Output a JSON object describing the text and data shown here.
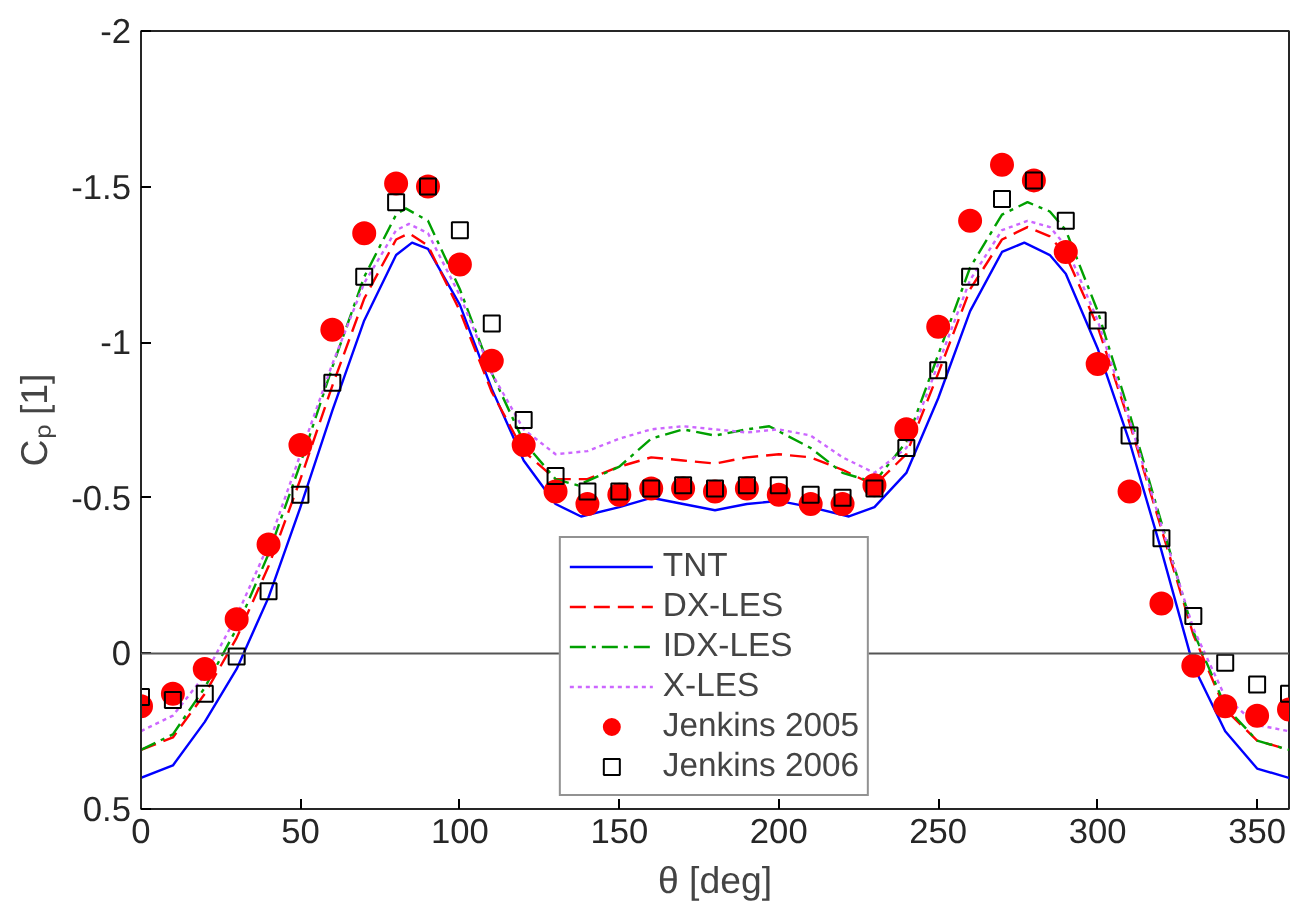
{
  "chart_data": {
    "type": "line",
    "xlabel": "θ [deg]",
    "ylabel": "Cₚ [1]",
    "xlim": [
      0,
      360
    ],
    "xticks": [
      0,
      50,
      100,
      150,
      200,
      250,
      300,
      350
    ],
    "ylim": [
      0.5,
      -2
    ],
    "yticks": [
      0.5,
      0,
      -0.5,
      -1,
      -1.5,
      -2
    ],
    "grid": false,
    "legend": "bottom",
    "ref_lines": [
      {
        "axis": "y",
        "value": 0,
        "color": "#555555"
      }
    ],
    "series": [
      {
        "name": "TNT",
        "color": "#0000ff",
        "line_style": "solid",
        "x": [
          0,
          10,
          20,
          30,
          40,
          50,
          60,
          70,
          80,
          85,
          90,
          100,
          110,
          120,
          130,
          138,
          150,
          160,
          170,
          180,
          190,
          200,
          210,
          222,
          230,
          240,
          250,
          260,
          270,
          277,
          285,
          290,
          300,
          310,
          320,
          330,
          340,
          350,
          360
        ],
        "values": [
          0.4,
          0.36,
          0.22,
          0.05,
          -0.18,
          -0.47,
          -0.78,
          -1.07,
          -1.28,
          -1.32,
          -1.3,
          -1.12,
          -0.85,
          -0.62,
          -0.48,
          -0.44,
          -0.47,
          -0.5,
          -0.48,
          -0.46,
          -0.48,
          -0.49,
          -0.47,
          -0.44,
          -0.47,
          -0.58,
          -0.82,
          -1.1,
          -1.29,
          -1.32,
          -1.28,
          -1.22,
          -0.98,
          -0.68,
          -0.33,
          0.04,
          0.25,
          0.37,
          0.4
        ]
      },
      {
        "name": "DX-LES",
        "color": "#ff0000",
        "line_style": "dashed",
        "x": [
          0,
          10,
          20,
          30,
          40,
          50,
          60,
          70,
          80,
          84,
          90,
          100,
          110,
          120,
          130,
          140,
          150,
          160,
          170,
          180,
          190,
          200,
          210,
          220,
          230,
          240,
          250,
          260,
          270,
          278,
          285,
          290,
          300,
          310,
          320,
          330,
          340,
          350,
          360
        ],
        "values": [
          0.31,
          0.27,
          0.13,
          -0.05,
          -0.28,
          -0.56,
          -0.86,
          -1.14,
          -1.33,
          -1.35,
          -1.31,
          -1.1,
          -0.84,
          -0.65,
          -0.56,
          -0.56,
          -0.6,
          -0.63,
          -0.62,
          -0.61,
          -0.63,
          -0.64,
          -0.63,
          -0.59,
          -0.54,
          -0.64,
          -0.9,
          -1.17,
          -1.33,
          -1.37,
          -1.34,
          -1.28,
          -1.05,
          -0.74,
          -0.4,
          -0.06,
          0.18,
          0.28,
          0.31
        ]
      },
      {
        "name": "IDX-LES",
        "color": "#00a000",
        "line_style": "dashdot",
        "x": [
          0,
          10,
          20,
          30,
          40,
          50,
          60,
          70,
          80,
          83,
          90,
          100,
          110,
          120,
          130,
          137,
          150,
          160,
          170,
          180,
          190,
          197,
          210,
          220,
          230,
          240,
          250,
          260,
          270,
          278,
          285,
          290,
          300,
          310,
          320,
          330,
          340,
          350,
          360
        ],
        "values": [
          0.31,
          0.26,
          0.11,
          -0.08,
          -0.32,
          -0.61,
          -0.92,
          -1.21,
          -1.41,
          -1.43,
          -1.39,
          -1.17,
          -0.9,
          -0.68,
          -0.56,
          -0.54,
          -0.6,
          -0.69,
          -0.72,
          -0.7,
          -0.72,
          -0.73,
          -0.66,
          -0.58,
          -0.55,
          -0.68,
          -0.96,
          -1.24,
          -1.41,
          -1.45,
          -1.42,
          -1.36,
          -1.1,
          -0.77,
          -0.42,
          -0.07,
          0.17,
          0.28,
          0.31
        ]
      },
      {
        "name": "X-LES",
        "color": "#cc66ff",
        "line_style": "dotted",
        "x": [
          0,
          10,
          20,
          30,
          40,
          50,
          60,
          70,
          80,
          84,
          90,
          100,
          110,
          120,
          130,
          140,
          150,
          160,
          170,
          180,
          190,
          200,
          210,
          220,
          230,
          240,
          250,
          260,
          270,
          278,
          285,
          290,
          300,
          310,
          320,
          330,
          340,
          350,
          360
        ],
        "values": [
          0.25,
          0.2,
          0.07,
          -0.12,
          -0.35,
          -0.64,
          -0.93,
          -1.19,
          -1.36,
          -1.38,
          -1.35,
          -1.15,
          -0.9,
          -0.72,
          -0.64,
          -0.65,
          -0.69,
          -0.72,
          -0.73,
          -0.72,
          -0.71,
          -0.72,
          -0.7,
          -0.63,
          -0.58,
          -0.66,
          -0.93,
          -1.2,
          -1.36,
          -1.39,
          -1.37,
          -1.31,
          -1.07,
          -0.75,
          -0.41,
          -0.08,
          0.14,
          0.23,
          0.25
        ]
      },
      {
        "name": "Jenkins 2005",
        "type": "scatter",
        "color": "#ff0000",
        "marker": "circle",
        "x": [
          0,
          10,
          20,
          30,
          40,
          50,
          60,
          70,
          80,
          90,
          100,
          110,
          120,
          130,
          140,
          150,
          160,
          170,
          180,
          190,
          200,
          210,
          220,
          230,
          240,
          250,
          260,
          270,
          280,
          290,
          300,
          310,
          320,
          330,
          340,
          350,
          360
        ],
        "values": [
          0.17,
          0.13,
          0.05,
          -0.11,
          -0.35,
          -0.67,
          -1.04,
          -1.35,
          -1.51,
          -1.5,
          -1.25,
          -0.94,
          -0.67,
          -0.52,
          -0.48,
          -0.51,
          -0.53,
          -0.53,
          -0.52,
          -0.53,
          -0.51,
          -0.48,
          -0.48,
          -0.54,
          -0.72,
          -1.05,
          -1.39,
          -1.57,
          -1.52,
          -1.29,
          -0.93,
          -0.52,
          -0.16,
          0.04,
          0.17,
          0.2,
          0.18
        ]
      },
      {
        "name": "Jenkins 2006",
        "type": "scatter",
        "color": "#000000",
        "marker": "square",
        "x": [
          0,
          10,
          20,
          30,
          40,
          50,
          60,
          70,
          80,
          90,
          100,
          110,
          120,
          130,
          140,
          150,
          160,
          170,
          180,
          190,
          200,
          210,
          220,
          230,
          240,
          250,
          260,
          270,
          280,
          290,
          300,
          310,
          320,
          330,
          340,
          350,
          360
        ],
        "values": [
          0.14,
          0.15,
          0.13,
          0.01,
          -0.2,
          -0.51,
          -0.87,
          -1.21,
          -1.45,
          -1.5,
          -1.36,
          -1.06,
          -0.75,
          -0.57,
          -0.52,
          -0.52,
          -0.53,
          -0.54,
          -0.53,
          -0.54,
          -0.54,
          -0.51,
          -0.5,
          -0.53,
          -0.66,
          -0.91,
          -1.21,
          -1.46,
          -1.52,
          -1.39,
          -1.07,
          -0.7,
          -0.37,
          -0.12,
          0.03,
          0.1,
          0.13
        ]
      }
    ]
  }
}
